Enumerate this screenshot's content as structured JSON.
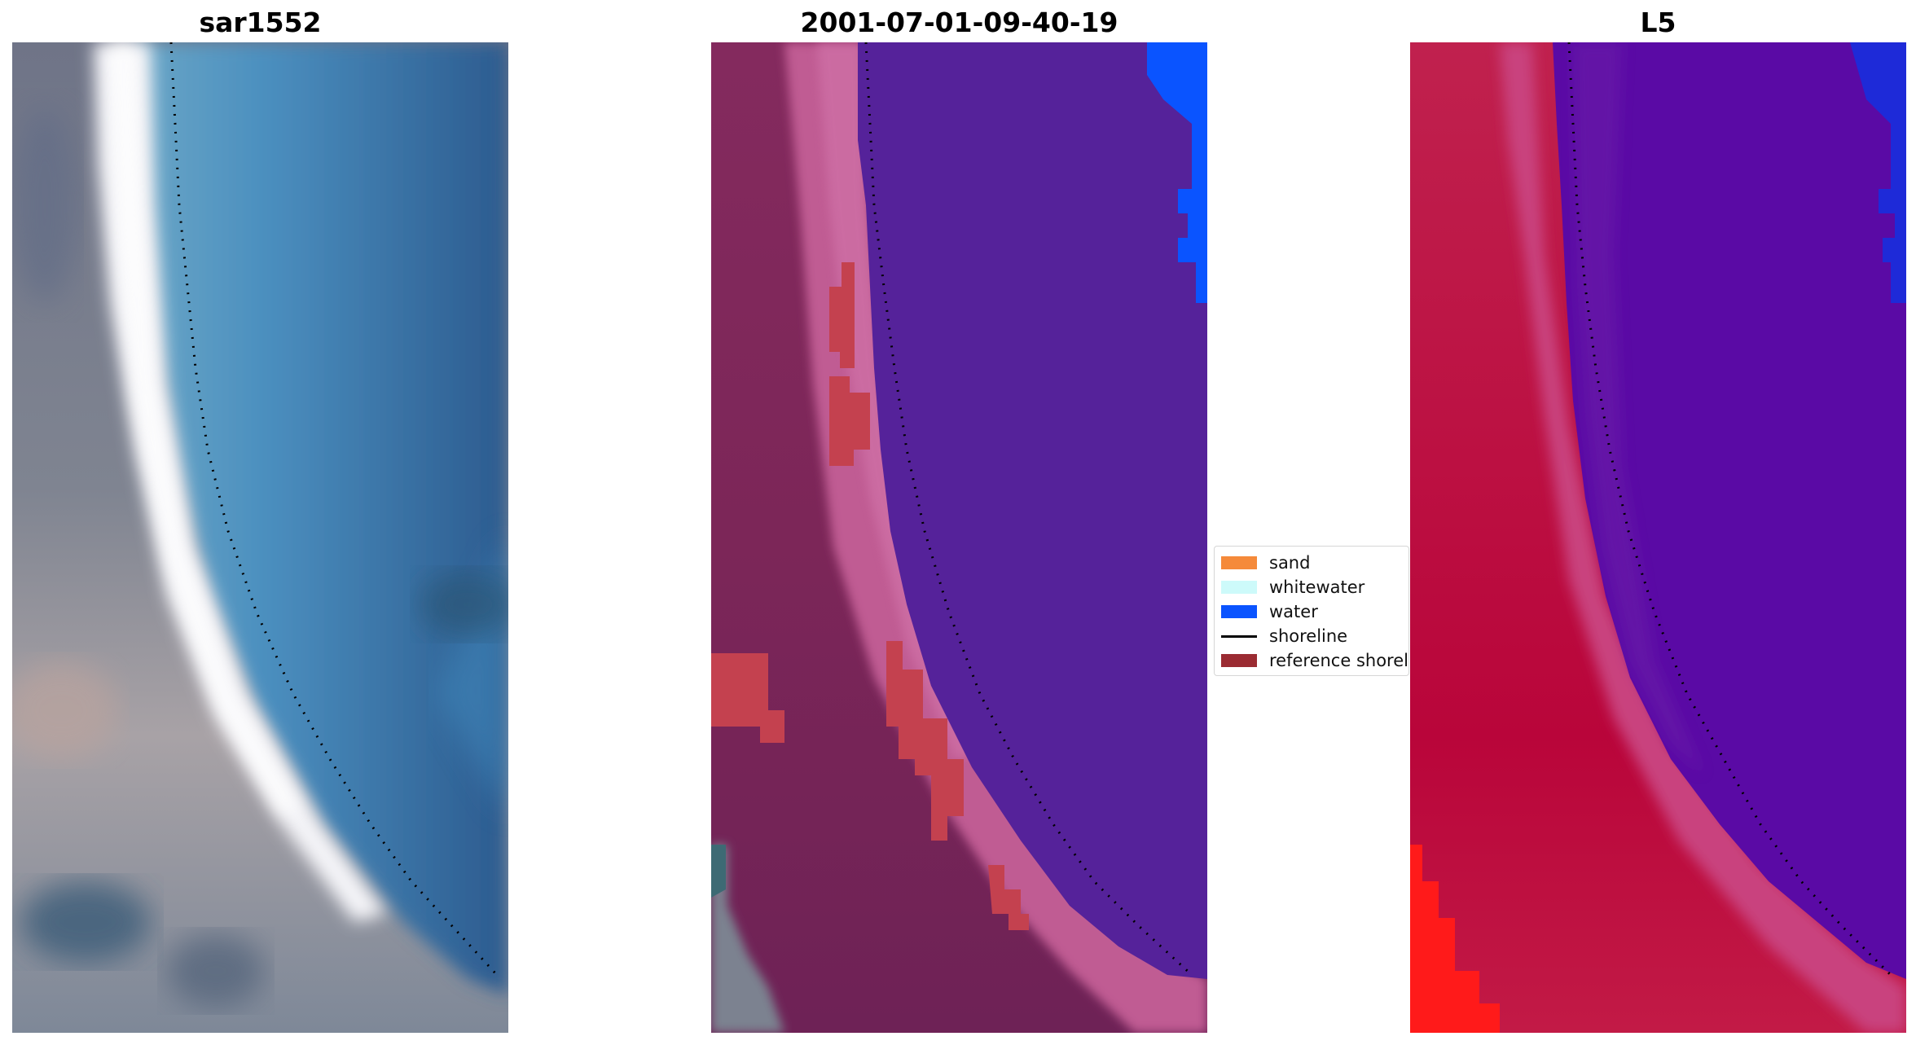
{
  "panels": [
    {
      "title": "sar1552"
    },
    {
      "title": "2001-07-01-09-40-19"
    },
    {
      "title": "L5"
    }
  ],
  "legend": {
    "items": [
      {
        "label": "sand",
        "color": "#f58a3a",
        "kind": "patch"
      },
      {
        "label": "whitewater",
        "color": "#cdfafa",
        "kind": "patch"
      },
      {
        "label": "water",
        "color": "#0a54ff",
        "kind": "patch"
      },
      {
        "label": "shoreline",
        "color": "#000000",
        "kind": "line"
      },
      {
        "label": "reference shoreline",
        "color": "#9b2b32",
        "kind": "patch"
      }
    ]
  },
  "colors": {
    "rgb_water": "#2f6ea3",
    "rgb_beach": "#f2f2f5",
    "rgb_land": "#8c8f9a",
    "class_water": "#55229a",
    "class_land": "#7a2356",
    "class_beach": "#c55d96",
    "class_highlight": "#c4414f",
    "false_color_land": "#c21a46",
    "false_color_water": "#5a0aa5",
    "false_color_bright": "#ff1a1a",
    "shoreline_dots": "#000000"
  }
}
